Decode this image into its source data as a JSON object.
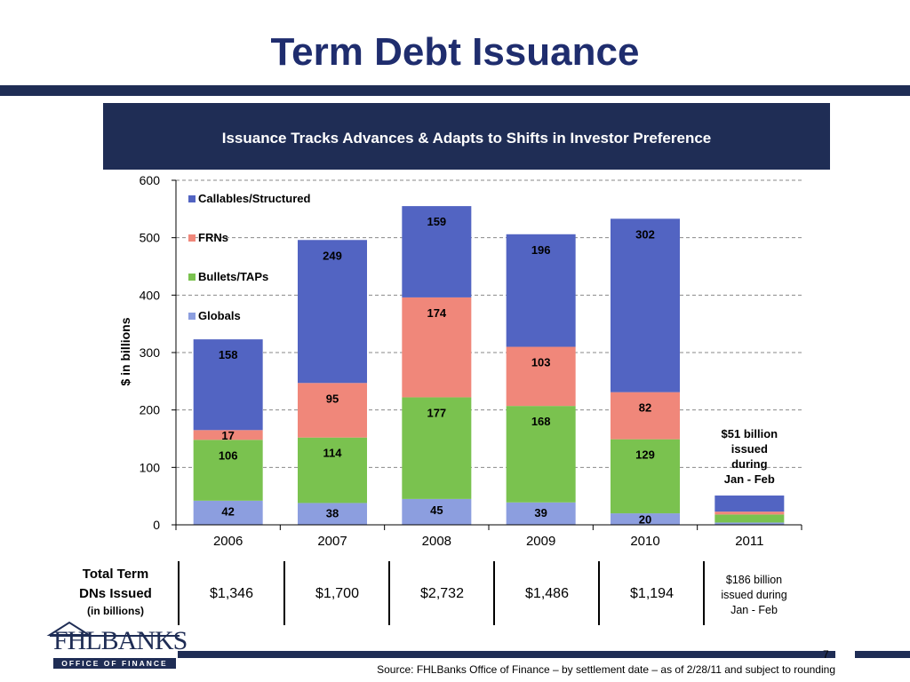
{
  "slide": {
    "title": "Term Debt Issuance",
    "banner": "Issuance Tracks Advances & Adapts to Shifts in Investor Preference",
    "page_number": "7",
    "source": "Source: FHLBanks Office of Finance – by settlement date – as of 2/28/11 and subject to rounding"
  },
  "logo": {
    "name": "FHLBANKS",
    "subtitle": "OFFICE OF FINANCE"
  },
  "colors": {
    "navy": "#1f2d55",
    "title": "#1f2d6e",
    "callables": "#5264c2",
    "frns": "#f0877a",
    "bullets": "#7ac24f",
    "globals": "#8c9edf"
  },
  "chart_data": {
    "type": "bar",
    "stacked": true,
    "categories": [
      "2006",
      "2007",
      "2008",
      "2009",
      "2010",
      "2011"
    ],
    "ylabel": "$ in billions",
    "ylim": [
      0,
      600
    ],
    "yticks": [
      0,
      100,
      200,
      300,
      400,
      500,
      600
    ],
    "grid": true,
    "legend_position": "top-left",
    "series": [
      {
        "name": "Globals",
        "color": "#8c9edf",
        "values": [
          42,
          38,
          45,
          39,
          20,
          4
        ],
        "labels": [
          "42",
          "38",
          "45",
          "39",
          "20",
          ""
        ]
      },
      {
        "name": "Bullets/TAPs",
        "color": "#7ac24f",
        "values": [
          106,
          114,
          177,
          168,
          129,
          14
        ],
        "labels": [
          "106",
          "114",
          "177",
          "168",
          "129",
          ""
        ]
      },
      {
        "name": "FRNs",
        "color": "#f0877a",
        "values": [
          17,
          95,
          174,
          103,
          82,
          5
        ],
        "labels": [
          "17",
          "95",
          "174",
          "103",
          "82",
          ""
        ]
      },
      {
        "name": "Callables/Structured",
        "color": "#5264c2",
        "values": [
          158,
          249,
          159,
          196,
          302,
          28
        ],
        "labels": [
          "158",
          "249",
          "159",
          "196",
          "302",
          ""
        ]
      }
    ],
    "legend_order": [
      "Callables/Structured",
      "FRNs",
      "Bullets/TAPs",
      "Globals"
    ],
    "annotation": [
      "$51 billion",
      "issued",
      "during",
      "Jan - Feb"
    ]
  },
  "table": {
    "header_line1": "Total Term",
    "header_line2": "DNs Issued",
    "header_sub": "(in billions)",
    "values": [
      "$1,346",
      "$1,700",
      "$2,732",
      "$1,486",
      "$1,194"
    ],
    "note": [
      "$186 billion",
      "issued during",
      "Jan - Feb"
    ]
  }
}
